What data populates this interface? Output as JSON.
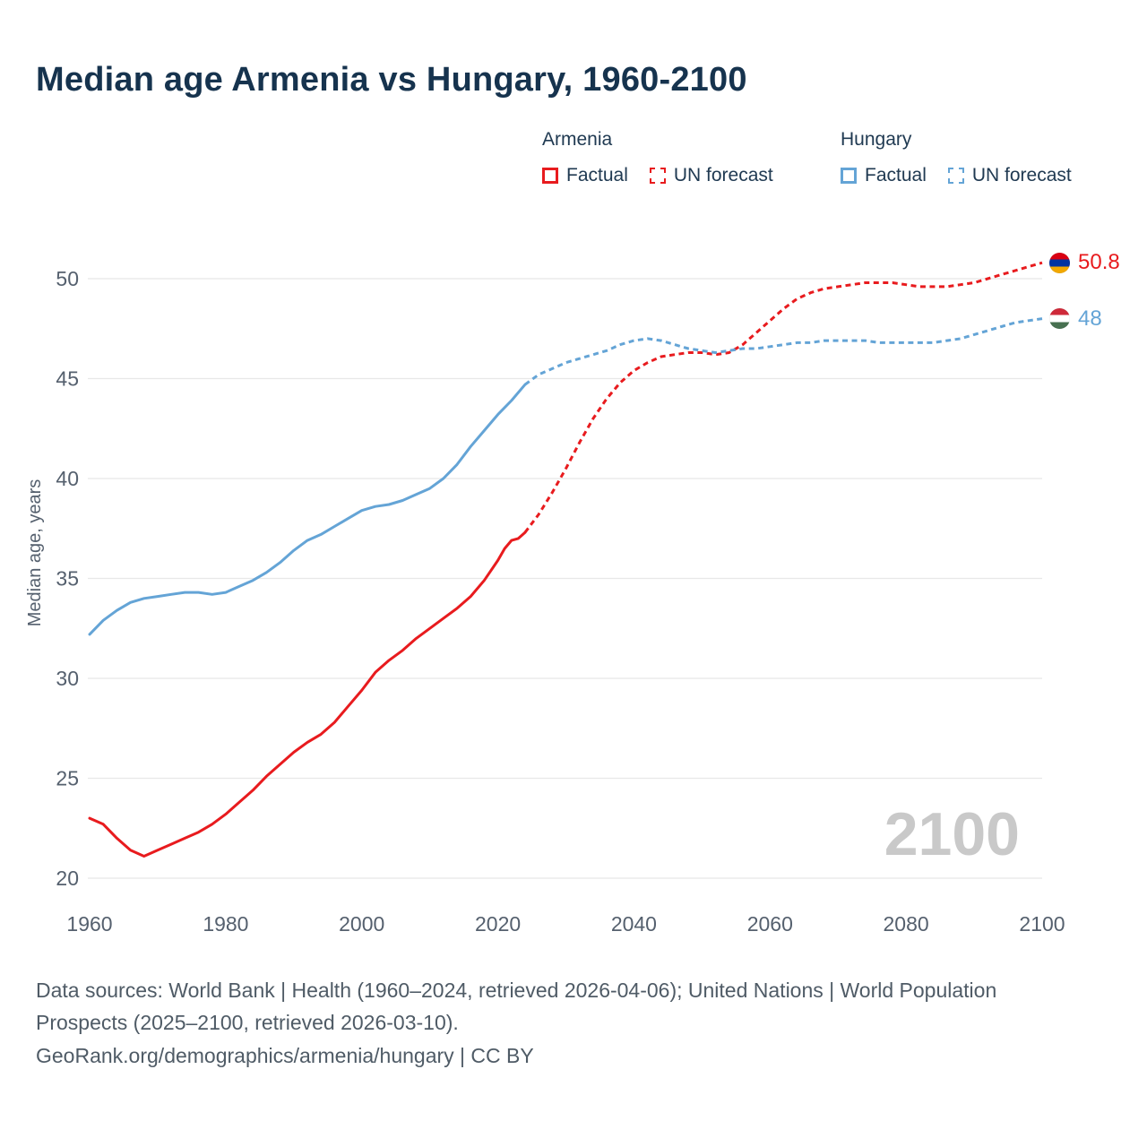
{
  "title": "Median age Armenia vs Hungary, 1960-2100",
  "legend": {
    "groups": [
      {
        "name": "Armenia",
        "color": "#e81b1e",
        "items": [
          {
            "label": "Factual",
            "dash": false
          },
          {
            "label": "UN forecast",
            "dash": true
          }
        ]
      },
      {
        "name": "Hungary",
        "color": "#64a4d6",
        "items": [
          {
            "label": "Factual",
            "dash": false
          },
          {
            "label": "UN forecast",
            "dash": true
          }
        ]
      }
    ]
  },
  "chart_data": {
    "type": "line",
    "title": "Median age Armenia vs Hungary, 1960-2100",
    "xlabel": "",
    "ylabel": "Median age, years",
    "xlim": [
      1960,
      2100
    ],
    "ylim": [
      19.5,
      53
    ],
    "xticks": [
      1960,
      1980,
      2000,
      2020,
      2040,
      2060,
      2080,
      2100
    ],
    "yticks": [
      20,
      25,
      30,
      35,
      40,
      45,
      50
    ],
    "grid": "horizontal",
    "legend_position": "top-right",
    "watermark": "2100",
    "series": [
      {
        "name": "Armenia Factual",
        "color": "#e81b1e",
        "style": "solid",
        "points": [
          [
            1960,
            23.0
          ],
          [
            1962,
            22.7
          ],
          [
            1964,
            22.0
          ],
          [
            1966,
            21.4
          ],
          [
            1968,
            21.1
          ],
          [
            1970,
            21.4
          ],
          [
            1972,
            21.7
          ],
          [
            1974,
            22.0
          ],
          [
            1976,
            22.3
          ],
          [
            1978,
            22.7
          ],
          [
            1980,
            23.2
          ],
          [
            1982,
            23.8
          ],
          [
            1984,
            24.4
          ],
          [
            1986,
            25.1
          ],
          [
            1988,
            25.7
          ],
          [
            1990,
            26.3
          ],
          [
            1992,
            26.8
          ],
          [
            1994,
            27.2
          ],
          [
            1996,
            27.8
          ],
          [
            1998,
            28.6
          ],
          [
            2000,
            29.4
          ],
          [
            2002,
            30.3
          ],
          [
            2004,
            30.9
          ],
          [
            2006,
            31.4
          ],
          [
            2008,
            32.0
          ],
          [
            2010,
            32.5
          ],
          [
            2012,
            33.0
          ],
          [
            2014,
            33.5
          ],
          [
            2016,
            34.1
          ],
          [
            2018,
            34.9
          ],
          [
            2020,
            35.9
          ],
          [
            2021,
            36.5
          ],
          [
            2022,
            36.9
          ],
          [
            2023,
            37.0
          ],
          [
            2024,
            37.3
          ]
        ]
      },
      {
        "name": "Armenia UN forecast",
        "color": "#e81b1e",
        "style": "dashed",
        "points": [
          [
            2024,
            37.3
          ],
          [
            2026,
            38.2
          ],
          [
            2028,
            39.3
          ],
          [
            2030,
            40.5
          ],
          [
            2032,
            41.8
          ],
          [
            2034,
            43.0
          ],
          [
            2036,
            44.0
          ],
          [
            2038,
            44.8
          ],
          [
            2040,
            45.4
          ],
          [
            2042,
            45.8
          ],
          [
            2044,
            46.1
          ],
          [
            2046,
            46.2
          ],
          [
            2048,
            46.3
          ],
          [
            2050,
            46.3
          ],
          [
            2052,
            46.2
          ],
          [
            2054,
            46.3
          ],
          [
            2056,
            46.7
          ],
          [
            2058,
            47.3
          ],
          [
            2060,
            47.9
          ],
          [
            2062,
            48.5
          ],
          [
            2064,
            49.0
          ],
          [
            2066,
            49.3
          ],
          [
            2068,
            49.5
          ],
          [
            2070,
            49.6
          ],
          [
            2072,
            49.7
          ],
          [
            2074,
            49.8
          ],
          [
            2076,
            49.8
          ],
          [
            2078,
            49.8
          ],
          [
            2080,
            49.7
          ],
          [
            2082,
            49.6
          ],
          [
            2084,
            49.6
          ],
          [
            2086,
            49.6
          ],
          [
            2088,
            49.7
          ],
          [
            2090,
            49.8
          ],
          [
            2092,
            50.0
          ],
          [
            2094,
            50.2
          ],
          [
            2096,
            50.4
          ],
          [
            2098,
            50.6
          ],
          [
            2100,
            50.8
          ]
        ]
      },
      {
        "name": "Hungary Factual",
        "color": "#64a4d6",
        "style": "solid",
        "points": [
          [
            1960,
            32.2
          ],
          [
            1962,
            32.9
          ],
          [
            1964,
            33.4
          ],
          [
            1966,
            33.8
          ],
          [
            1968,
            34.0
          ],
          [
            1970,
            34.1
          ],
          [
            1972,
            34.2
          ],
          [
            1974,
            34.3
          ],
          [
            1976,
            34.3
          ],
          [
            1978,
            34.2
          ],
          [
            1980,
            34.3
          ],
          [
            1982,
            34.6
          ],
          [
            1984,
            34.9
          ],
          [
            1986,
            35.3
          ],
          [
            1988,
            35.8
          ],
          [
            1990,
            36.4
          ],
          [
            1992,
            36.9
          ],
          [
            1994,
            37.2
          ],
          [
            1996,
            37.6
          ],
          [
            1998,
            38.0
          ],
          [
            2000,
            38.4
          ],
          [
            2002,
            38.6
          ],
          [
            2004,
            38.7
          ],
          [
            2006,
            38.9
          ],
          [
            2008,
            39.2
          ],
          [
            2010,
            39.5
          ],
          [
            2012,
            40.0
          ],
          [
            2014,
            40.7
          ],
          [
            2016,
            41.6
          ],
          [
            2018,
            42.4
          ],
          [
            2020,
            43.2
          ],
          [
            2022,
            43.9
          ],
          [
            2024,
            44.7
          ]
        ]
      },
      {
        "name": "Hungary UN forecast",
        "color": "#64a4d6",
        "style": "dashed",
        "points": [
          [
            2024,
            44.7
          ],
          [
            2026,
            45.2
          ],
          [
            2028,
            45.5
          ],
          [
            2030,
            45.8
          ],
          [
            2032,
            46.0
          ],
          [
            2034,
            46.2
          ],
          [
            2036,
            46.4
          ],
          [
            2038,
            46.7
          ],
          [
            2040,
            46.9
          ],
          [
            2042,
            47.0
          ],
          [
            2044,
            46.9
          ],
          [
            2046,
            46.7
          ],
          [
            2048,
            46.5
          ],
          [
            2050,
            46.4
          ],
          [
            2052,
            46.3
          ],
          [
            2054,
            46.4
          ],
          [
            2056,
            46.5
          ],
          [
            2058,
            46.5
          ],
          [
            2060,
            46.6
          ],
          [
            2062,
            46.7
          ],
          [
            2064,
            46.8
          ],
          [
            2066,
            46.8
          ],
          [
            2068,
            46.9
          ],
          [
            2070,
            46.9
          ],
          [
            2072,
            46.9
          ],
          [
            2074,
            46.9
          ],
          [
            2076,
            46.8
          ],
          [
            2078,
            46.8
          ],
          [
            2080,
            46.8
          ],
          [
            2082,
            46.8
          ],
          [
            2084,
            46.8
          ],
          [
            2086,
            46.9
          ],
          [
            2088,
            47.0
          ],
          [
            2090,
            47.2
          ],
          [
            2092,
            47.4
          ],
          [
            2094,
            47.6
          ],
          [
            2096,
            47.8
          ],
          [
            2098,
            47.9
          ],
          [
            2100,
            48.0
          ]
        ]
      }
    ],
    "end_labels": [
      {
        "text": "50.8",
        "value": 50.8,
        "color": "#e81b1e",
        "flag": "armenia-flag",
        "flag_colors": [
          "#d90012",
          "#0033a0",
          "#f2a800"
        ]
      },
      {
        "text": "48",
        "value": 48.0,
        "color": "#64a4d6",
        "flag": "hungary-flag",
        "flag_colors": [
          "#ce2939",
          "#ffffff",
          "#477050"
        ]
      }
    ]
  },
  "footer": {
    "sources": "Data sources: World Bank | Health (1960–2024, retrieved 2026-04-06); United Nations | World Population Prospects (2025–2100, retrieved 2026-03-10).",
    "attribution": "GeoRank.org/demographics/armenia/hungary | CC BY"
  }
}
